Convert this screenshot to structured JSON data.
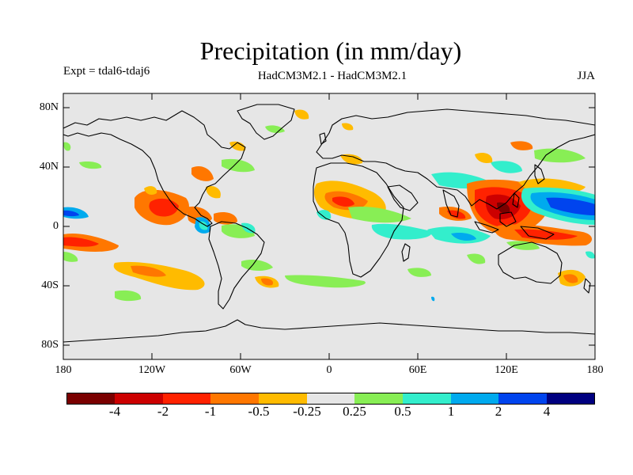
{
  "title": "Precipitation (in mm/day)",
  "expt": "Expt = tdal6-tdaj6",
  "model": "HadCM3M2.1 - HadCM3M2.1",
  "season": "JJA",
  "axes": {
    "lat_labels": [
      "80N",
      "40N",
      "0",
      "40S",
      "80S"
    ],
    "lon_labels": [
      "180",
      "120W",
      "60W",
      "0",
      "60E",
      "120E",
      "180"
    ]
  },
  "colorbar": {
    "colors": [
      "#7a0000",
      "#cc0000",
      "#ff2200",
      "#ff7700",
      "#ffbb00",
      "#e6e6e6",
      "#88ee55",
      "#33eecc",
      "#00aaee",
      "#0044ee",
      "#000080"
    ],
    "labels": [
      "-4",
      "-2",
      "-1",
      "-0.5",
      "-0.25",
      "0.25",
      "0.5",
      "1",
      "2",
      "4"
    ]
  },
  "map_colors": {
    "ocean_background": "#e6e6e6",
    "coastline": "#000000"
  }
}
